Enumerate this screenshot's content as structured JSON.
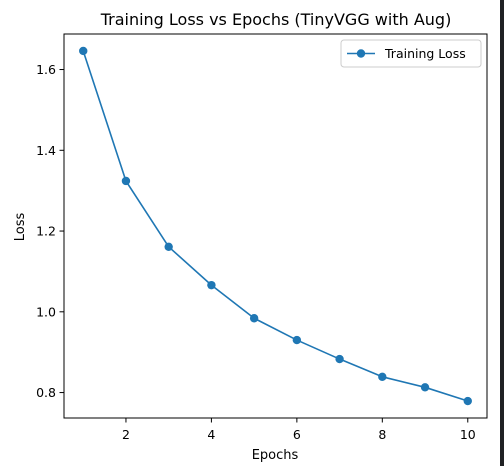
{
  "chart_data": {
    "type": "line",
    "title": "Training Loss vs Epochs (TinyVGG with Aug)",
    "xlabel": "Epochs",
    "ylabel": "Loss",
    "xlim": [
      0.55,
      10.45
    ],
    "ylim": [
      0.737,
      1.688
    ],
    "xticks": [
      2,
      4,
      6,
      8,
      10
    ],
    "xtick_labels": [
      "2",
      "4",
      "6",
      "8",
      "10"
    ],
    "yticks": [
      0.8,
      1.0,
      1.2,
      1.4,
      1.6
    ],
    "ytick_labels": [
      "0.8",
      "1.0",
      "1.2",
      "1.4",
      "1.6"
    ],
    "grid": false,
    "legend_position": "top-right",
    "series": [
      {
        "name": "Training Loss",
        "color": "#1f77b4",
        "marker": "circle",
        "x": [
          1,
          2,
          3,
          4,
          5,
          6,
          7,
          8,
          9,
          10
        ],
        "y": [
          1.646,
          1.324,
          1.161,
          1.066,
          0.984,
          0.93,
          0.883,
          0.839,
          0.813,
          0.779
        ]
      }
    ]
  }
}
